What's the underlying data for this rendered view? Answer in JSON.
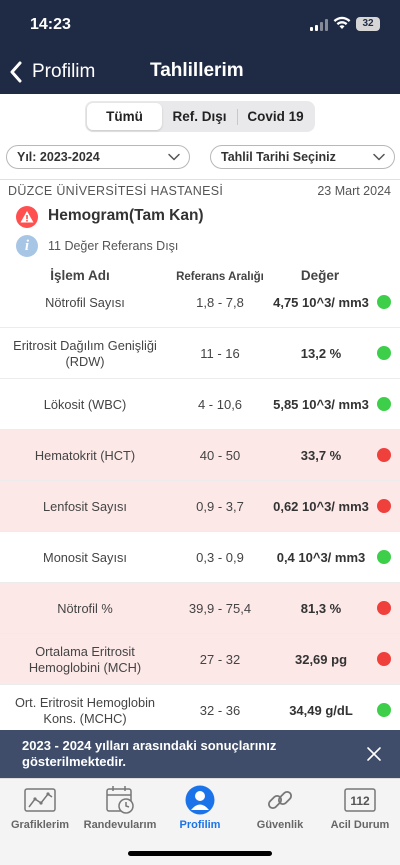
{
  "status_bar": {
    "time": "14:23",
    "battery": "32"
  },
  "nav": {
    "back_label": "Profilim",
    "title": "Tahlillerim"
  },
  "segments": [
    {
      "label": "Tümü",
      "active": true
    },
    {
      "label": "Ref. Dışı",
      "active": false
    },
    {
      "label": "Covid 19",
      "active": false
    }
  ],
  "filters": {
    "year": "Yıl: 2023-2024",
    "date": "Tahlil Tarihi Seçiniz"
  },
  "report": {
    "hospital": "DÜZCE ÜNİVERSİTESİ HASTANESİ",
    "date": "23 Mart 2024",
    "test_name": "Hemogram(Tam Kan)",
    "out_of_range_info": "11 Değer Referans Dışı"
  },
  "table": {
    "headers": {
      "name": "İşlem Adı",
      "range": "Referans Aralığı",
      "value": "Değer"
    },
    "rows": [
      {
        "name": "Nötrofil Sayısı",
        "range": "1,8 - 7,8",
        "value": "4,75 10^3/ mm3",
        "status": "normal"
      },
      {
        "name": "Eritrosit Dağılım Genişliği (RDW)",
        "range": "11 - 16",
        "value": "13,2 %",
        "status": "normal"
      },
      {
        "name": "Lökosit (WBC)",
        "range": "4 - 10,6",
        "value": "5,85 10^3/ mm3",
        "status": "normal"
      },
      {
        "name": "Hematokrit (HCT)",
        "range": "40 - 50",
        "value": "33,7 %",
        "status": "out"
      },
      {
        "name": "Lenfosit Sayısı",
        "range": "0,9 - 3,7",
        "value": "0,62 10^3/ mm3",
        "status": "out"
      },
      {
        "name": "Monosit Sayısı",
        "range": "0,3 - 0,9",
        "value": "0,4 10^3/ mm3",
        "status": "normal"
      },
      {
        "name": "Nötrofil %",
        "range": "39,9 - 75,4",
        "value": "81,3 %",
        "status": "out"
      },
      {
        "name": "Ortalama Eritrosit Hemoglobini (MCH)",
        "range": "27 - 32",
        "value": "32,69 pg",
        "status": "out"
      },
      {
        "name": "Ort. Eritrosit Hemoglobin Kons. (MCHC)",
        "range": "32 - 36",
        "value": "34,49 g/dL",
        "status": "normal"
      }
    ]
  },
  "banner": {
    "message": "2023 - 2024 yılları arasındaki sonuçlarınız gösterilmektedir."
  },
  "tabbar": [
    {
      "label": "Grafiklerim",
      "icon": "chart-icon",
      "active": false
    },
    {
      "label": "Randevularım",
      "icon": "calendar-icon",
      "active": false
    },
    {
      "label": "Profilim",
      "icon": "person-icon",
      "active": true
    },
    {
      "label": "Güvenlik",
      "icon": "link-icon",
      "active": false
    },
    {
      "label": "Acil Durum",
      "icon": "emergency-icon",
      "active": false,
      "badge": "112"
    }
  ],
  "colors": {
    "header_bg": "#1f2a44",
    "banner_bg": "#3f4d6a",
    "out_of_range_row": "#fde8e8",
    "normal_dot": "#3ecf4a",
    "out_dot": "#f0403c",
    "active_tab": "#1a73e8"
  }
}
